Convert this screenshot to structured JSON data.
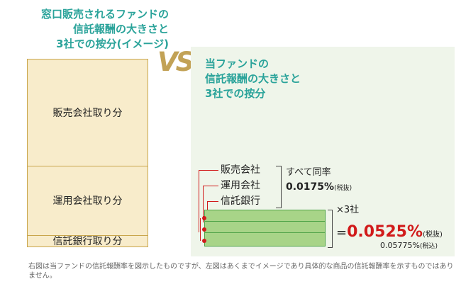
{
  "left": {
    "title_line1": "窓口販売されるファンドの",
    "title_line2": "信託報酬の大きさと",
    "title_line3": "3社での按分(イメージ)",
    "seg_sales": "販売会社取り分",
    "seg_mgmt": "運用会社取り分",
    "seg_trust": "信託銀行取り分"
  },
  "vs_label": "VS",
  "right": {
    "title_line1": "当ファンドの",
    "title_line2": "信託報酬の大きさと",
    "title_line3": "3社での按分",
    "label_sales": "販売会社",
    "label_mgmt": "運用会社",
    "label_trust": "信託銀行",
    "same_rate": "すべて同率",
    "rate_value": "0.0175%",
    "rate_tax_note": "(税抜)",
    "times3": "×3社",
    "equals": "=",
    "total_value": "0.0525%",
    "total_tax_note": "(税抜)",
    "total_incl": "0.05775%",
    "total_incl_note": "(税込)"
  },
  "footnote": "右図は当ファンドの信託報酬率を図示したものですが、左図はあくまでイメージであり具体的な商品の信託報酬率を示すものではありません。",
  "colors": {
    "teal_title": "#2aa39a",
    "left_fill": "#f8eccb",
    "left_border": "#c9a64c",
    "right_bg": "#eff5ea",
    "green_fill": "#a8d488",
    "red_accent": "#d11b1b"
  }
}
